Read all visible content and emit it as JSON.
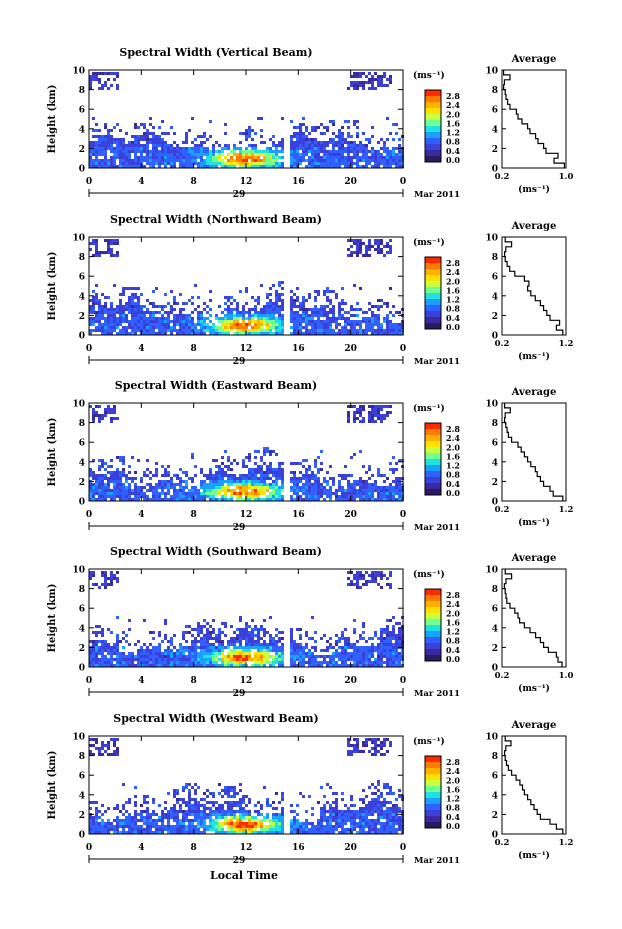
{
  "figure": {
    "date_label": "Mar 2011",
    "xaxis_label": "Local Time",
    "ylabel": "Height (km)",
    "colorbar_unit": "(ms⁻¹)",
    "profile_title": "Average",
    "profile_xlabel": "(ms⁻¹)",
    "day_marker": "29"
  },
  "colorbar": {
    "ticks": [
      "2.8",
      "2.4",
      "2.0",
      "1.6",
      "1.2",
      "0.8",
      "0.4",
      "0.0"
    ],
    "colors": [
      "#ff2a00",
      "#ff7a00",
      "#ffb000",
      "#ffe000",
      "#c8ff40",
      "#70ff90",
      "#20e0e0",
      "#1aa0ff",
      "#3060ff",
      "#3a40d8",
      "#3a2aa0",
      "#2a1a60"
    ]
  },
  "chart_data": [
    {
      "type": "heatmap",
      "title": "Spectral Width (Vertical Beam)",
      "x_ticks": [
        "0",
        "4",
        "8",
        "12",
        "16",
        "20",
        "0"
      ],
      "y_ticks": [
        "0",
        "2",
        "4",
        "6",
        "8",
        "10"
      ],
      "xlim": [
        0,
        24
      ],
      "ylim": [
        0,
        10
      ],
      "gap_hours": [
        14.9,
        15.3
      ],
      "profile": {
        "xlim": [
          0.2,
          1.0
        ],
        "x_ticks": [
          "0.2",
          "1.0"
        ],
        "heights": [
          0,
          0.5,
          1,
          1.5,
          2,
          2.5,
          3,
          3.5,
          4,
          4.5,
          5,
          5.5,
          6,
          6.5,
          7,
          7.5,
          8,
          8.5,
          9,
          9.5
        ],
        "values": [
          0.98,
          0.85,
          0.9,
          0.75,
          0.72,
          0.65,
          0.62,
          0.55,
          0.52,
          0.45,
          0.4,
          0.38,
          0.3,
          0.27,
          0.25,
          0.24,
          0.22,
          0.23,
          0.3,
          0.22
        ]
      }
    },
    {
      "type": "heatmap",
      "title": "Spectral Width (Northward Beam)",
      "x_ticks": [
        "0",
        "4",
        "8",
        "12",
        "16",
        "20",
        "0"
      ],
      "y_ticks": [
        "0",
        "2",
        "4",
        "6",
        "8",
        "10"
      ],
      "xlim": [
        0,
        24
      ],
      "ylim": [
        0,
        10
      ],
      "gap_hours": [
        14.9,
        15.3
      ],
      "profile": {
        "xlim": [
          0.2,
          1.2
        ],
        "x_ticks": [
          "0.2",
          "1.2"
        ],
        "heights": [
          0,
          0.5,
          1,
          1.5,
          2,
          2.5,
          3,
          3.5,
          4,
          4.5,
          5,
          5.5,
          6,
          6.5,
          7,
          7.5,
          8,
          8.5,
          9,
          9.5
        ],
        "values": [
          1.15,
          1.05,
          1.1,
          0.95,
          0.9,
          0.85,
          0.8,
          0.72,
          0.65,
          0.6,
          0.62,
          0.55,
          0.4,
          0.32,
          0.28,
          0.25,
          0.24,
          0.26,
          0.35,
          0.25
        ]
      }
    },
    {
      "type": "heatmap",
      "title": "Spectral Width (Eastward Beam)",
      "x_ticks": [
        "0",
        "4",
        "8",
        "12",
        "16",
        "20",
        "0"
      ],
      "y_ticks": [
        "0",
        "2",
        "4",
        "6",
        "8",
        "10"
      ],
      "xlim": [
        0,
        24
      ],
      "ylim": [
        0,
        10
      ],
      "gap_hours": [
        14.9,
        15.3
      ],
      "profile": {
        "xlim": [
          0.2,
          1.2
        ],
        "x_ticks": [
          "0.2",
          "1.2"
        ],
        "heights": [
          0,
          0.5,
          1,
          1.5,
          2,
          2.5,
          3,
          3.5,
          4,
          4.5,
          5,
          5.5,
          6,
          6.5,
          7,
          7.5,
          8,
          8.5,
          9,
          9.5
        ],
        "values": [
          1.15,
          1.0,
          0.95,
          0.85,
          0.8,
          0.75,
          0.72,
          0.65,
          0.6,
          0.55,
          0.5,
          0.45,
          0.35,
          0.3,
          0.28,
          0.26,
          0.24,
          0.25,
          0.33,
          0.24
        ]
      }
    },
    {
      "type": "heatmap",
      "title": "Spectral Width (Southward Beam)",
      "x_ticks": [
        "0",
        "4",
        "8",
        "12",
        "16",
        "20",
        "0"
      ],
      "y_ticks": [
        "0",
        "2",
        "4",
        "6",
        "8",
        "10"
      ],
      "xlim": [
        0,
        24
      ],
      "ylim": [
        0,
        10
      ],
      "gap_hours": [
        14.9,
        15.3
      ],
      "profile": {
        "xlim": [
          0.2,
          1.0
        ],
        "x_ticks": [
          "0.2",
          "1.0"
        ],
        "heights": [
          0,
          0.5,
          1,
          1.5,
          2,
          2.5,
          3,
          3.5,
          4,
          4.5,
          5,
          5.5,
          6,
          6.5,
          7,
          7.5,
          8,
          8.5,
          9,
          9.5
        ],
        "values": [
          0.95,
          0.9,
          0.88,
          0.78,
          0.72,
          0.68,
          0.62,
          0.55,
          0.48,
          0.42,
          0.4,
          0.36,
          0.3,
          0.26,
          0.25,
          0.24,
          0.23,
          0.25,
          0.32,
          0.24
        ]
      }
    },
    {
      "type": "heatmap",
      "title": "Spectral Width (Westward Beam)",
      "x_ticks": [
        "0",
        "4",
        "8",
        "12",
        "16",
        "20",
        "0"
      ],
      "y_ticks": [
        "0",
        "2",
        "4",
        "6",
        "8",
        "10"
      ],
      "xlim": [
        0,
        24
      ],
      "ylim": [
        0,
        10
      ],
      "gap_hours": [
        14.9,
        15.3
      ],
      "profile": {
        "xlim": [
          0.2,
          1.2
        ],
        "x_ticks": [
          "0.2",
          "1.2"
        ],
        "heights": [
          0,
          0.5,
          1,
          1.5,
          2,
          2.5,
          3,
          3.5,
          4,
          4.5,
          5,
          5.5,
          6,
          6.5,
          7,
          7.5,
          8,
          8.5,
          9,
          9.5
        ],
        "values": [
          1.15,
          1.05,
          0.95,
          0.8,
          0.75,
          0.7,
          0.65,
          0.6,
          0.55,
          0.52,
          0.48,
          0.42,
          0.35,
          0.3,
          0.27,
          0.25,
          0.24,
          0.26,
          0.34,
          0.25
        ]
      }
    }
  ]
}
